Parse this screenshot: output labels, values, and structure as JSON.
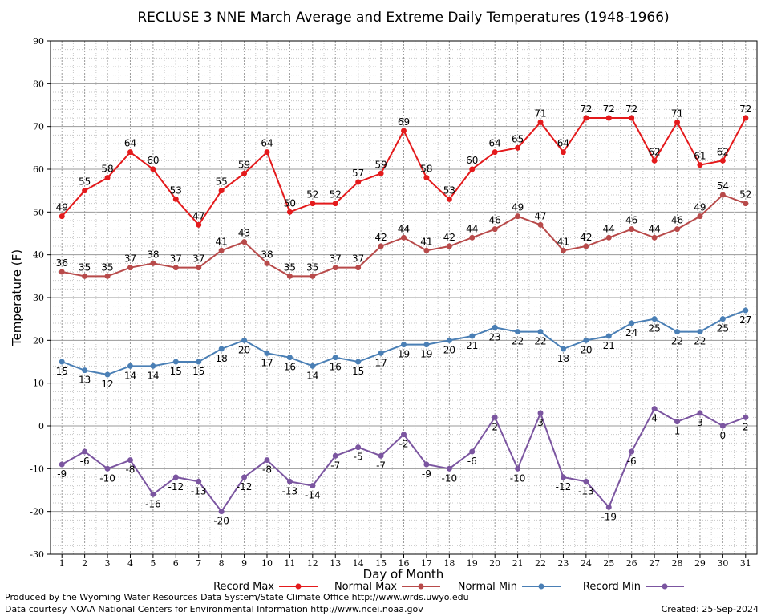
{
  "chart_data": {
    "type": "line",
    "title": "RECLUSE 3 NNE March Average and Extreme Daily Temperatures (1948-1966)",
    "xlabel": "Day of Month",
    "ylabel": "Temperature (F)",
    "ylim": [
      -30,
      90
    ],
    "yticks": [
      -30,
      -20,
      -10,
      0,
      10,
      20,
      30,
      40,
      50,
      60,
      70,
      80,
      90
    ],
    "x": [
      1,
      2,
      3,
      4,
      5,
      6,
      7,
      8,
      9,
      10,
      11,
      12,
      13,
      14,
      15,
      16,
      17,
      18,
      19,
      20,
      21,
      22,
      23,
      24,
      25,
      26,
      27,
      28,
      29,
      30,
      31
    ],
    "grid": true,
    "legend_position": "bottom",
    "series": [
      {
        "name": "Record Max",
        "color": "#e41a1c",
        "label_position": "above",
        "values": [
          49,
          55,
          58,
          64,
          60,
          53,
          47,
          55,
          59,
          64,
          50,
          52,
          52,
          57,
          59,
          69,
          58,
          53,
          60,
          64,
          65,
          71,
          64,
          72,
          72,
          72,
          62,
          71,
          61,
          62,
          72
        ]
      },
      {
        "name": "Normal Max",
        "color": "#b84a4a",
        "label_position": "above",
        "values": [
          36,
          35,
          35,
          37,
          38,
          37,
          37,
          41,
          43,
          38,
          35,
          35,
          37,
          37,
          42,
          44,
          41,
          42,
          44,
          46,
          49,
          47,
          41,
          42,
          44,
          46,
          44,
          46,
          49,
          54,
          52
        ]
      },
      {
        "name": "Normal Min",
        "color": "#4a7fb5",
        "label_position": "below",
        "values": [
          15,
          13,
          12,
          14,
          14,
          15,
          15,
          18,
          20,
          17,
          16,
          14,
          16,
          15,
          17,
          19,
          19,
          20,
          21,
          23,
          22,
          22,
          18,
          20,
          21,
          24,
          25,
          22,
          22,
          25,
          27
        ]
      },
      {
        "name": "Record Min",
        "color": "#7b55a0",
        "label_position": "below",
        "values": [
          -9,
          -6,
          -10,
          -8,
          -16,
          -12,
          -13,
          -20,
          -12,
          -8,
          -13,
          -14,
          -7,
          -5,
          -7,
          -2,
          -9,
          -10,
          -6,
          2,
          -10,
          3,
          -12,
          -13,
          -19,
          -6,
          4,
          1,
          3,
          0,
          2
        ]
      }
    ]
  },
  "footer": {
    "produced_by": "Produced by the Wyoming Water Resources Data System/State Climate Office http://www.wrds.uwyo.edu",
    "data_courtesy": "Data courtesy NOAA National Centers for Environmental Information http://www.ncei.noaa.gov",
    "created": "Created:  25-Sep-2024"
  }
}
